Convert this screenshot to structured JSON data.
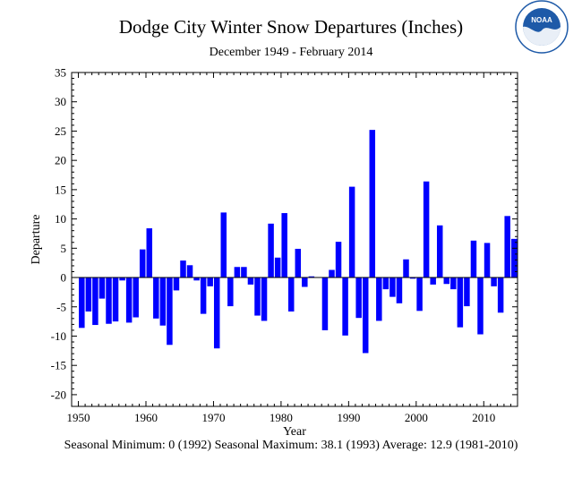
{
  "title": "Dodge City Winter Snow Departures (Inches)",
  "subtitle": "December 1949 - February 2014",
  "footer": "Seasonal Minimum: 0 (1992) Seasonal Maximum: 38.1 (1993) Average: 12.9 (1981-2010)",
  "logo": {
    "text": "NOAA",
    "accent": "#1e5aa8",
    "icon": "noaa-logo"
  },
  "colors": {
    "bar": "#0000ff",
    "axis": "#000000"
  },
  "chart_data": {
    "type": "bar",
    "title": "Dodge City Winter Snow Departures (Inches)",
    "xlabel": "Year",
    "ylabel": "Departure",
    "xlim": [
      1949,
      2015
    ],
    "ylim": [
      -22,
      35
    ],
    "xticks": [
      1950,
      1960,
      1970,
      1980,
      1990,
      2000,
      2010
    ],
    "yticks": [
      -20,
      -15,
      -10,
      -5,
      0,
      5,
      10,
      15,
      20,
      25,
      30,
      35
    ],
    "grid": false,
    "x": [
      1950,
      1951,
      1952,
      1953,
      1954,
      1955,
      1956,
      1957,
      1958,
      1959,
      1960,
      1961,
      1962,
      1963,
      1964,
      1965,
      1966,
      1967,
      1968,
      1969,
      1970,
      1971,
      1972,
      1973,
      1974,
      1975,
      1976,
      1977,
      1978,
      1979,
      1980,
      1981,
      1982,
      1983,
      1984,
      1985,
      1986,
      1987,
      1988,
      1989,
      1990,
      1991,
      1992,
      1993,
      1994,
      1995,
      1996,
      1997,
      1998,
      1999,
      2000,
      2001,
      2002,
      2003,
      2004,
      2005,
      2006,
      2007,
      2008,
      2009,
      2010,
      2011,
      2012,
      2013,
      2014
    ],
    "values": [
      -8.6,
      -5.8,
      -8.1,
      -3.6,
      -7.9,
      -7.5,
      -0.5,
      -7.7,
      -6.8,
      4.8,
      8.4,
      -7.0,
      -8.2,
      -11.5,
      -2.2,
      2.9,
      2.1,
      -0.5,
      -6.2,
      -1.5,
      -12.1,
      11.1,
      -4.9,
      1.8,
      1.8,
      -1.2,
      -6.5,
      -7.4,
      9.2,
      3.4,
      11.0,
      -5.8,
      4.9,
      -1.6,
      0.2,
      0.0,
      -9.0,
      1.3,
      6.1,
      -9.9,
      15.5,
      -6.9,
      -12.9,
      25.2,
      -7.4,
      -2.0,
      -3.3,
      -4.4,
      3.1,
      -0.2,
      -5.7,
      16.4,
      -1.2,
      8.9,
      -1.1,
      -2.0,
      -8.5,
      -4.9,
      6.3,
      -9.7,
      5.9,
      -1.5,
      -6.0,
      10.5,
      6.6
    ]
  }
}
